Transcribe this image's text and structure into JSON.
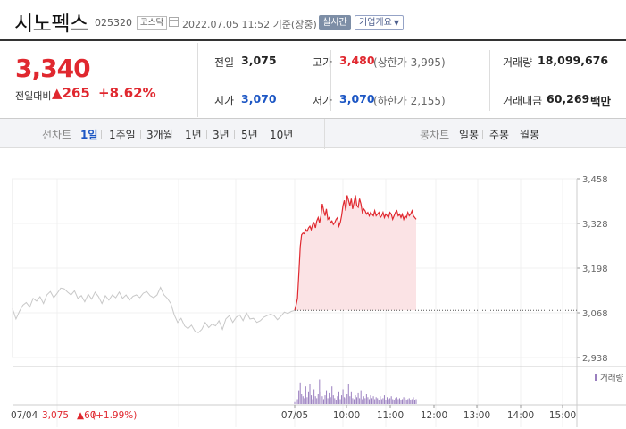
{
  "stock": {
    "name": "시노펙스",
    "code": "025320",
    "market": "코스닥",
    "datetime": "2022.07.05 11:52 기준(장중)",
    "realtime_label": "실시간",
    "corp_info_label": "기업개요"
  },
  "price": {
    "current": "3,340",
    "change_label": "전일대비",
    "change": "▲265",
    "rate": "+8.62%"
  },
  "stats": {
    "prev_label": "전일",
    "prev": "3,075",
    "high_label": "고가",
    "high": "3,480",
    "high_sub": "(상한가 3,995)",
    "volume_label": "거래량",
    "volume": "18,099,676",
    "open_label": "시가",
    "open": "3,070",
    "low_label": "저가",
    "low": "3,070",
    "low_sub": "(하한가 2,155)",
    "amount_label": "거래대금",
    "amount": "60,269",
    "amount_unit": "백만"
  },
  "tabs": {
    "line_label": "선차트",
    "line_items": [
      "1일",
      "1주일",
      "3개월",
      "1년",
      "3년",
      "5년",
      "10년"
    ],
    "active": "1일",
    "candle_label": "봉차트",
    "candle_items": [
      "일봉",
      "주봉",
      "월봉"
    ]
  },
  "chart_data": {
    "type": "line",
    "y_ticks": [
      "3,458",
      "3,328",
      "3,198",
      "3,068",
      "2,938"
    ],
    "ylim": [
      2938,
      3458
    ],
    "reference_price": 3075,
    "x_labels": [
      "07/05",
      "10:00",
      "11:00",
      "12:00",
      "13:00",
      "14:00",
      "15:00"
    ],
    "prev_day_label": "07/04",
    "prev_day_close": "3,075",
    "prev_day_change": "▲60",
    "prev_day_rate": "(+1.99%)",
    "volume_legend": "거래량",
    "prev_series": [
      3080,
      3050,
      3072,
      3090,
      3098,
      3085,
      3110,
      3102,
      3115,
      3095,
      3120,
      3130,
      3112,
      3125,
      3140,
      3138,
      3128,
      3120,
      3132,
      3110,
      3118,
      3100,
      3122,
      3108,
      3128,
      3115,
      3095,
      3118,
      3105,
      3120,
      3112,
      3128,
      3110,
      3120,
      3105,
      3116,
      3120,
      3112,
      3125,
      3130,
      3118,
      3112,
      3120,
      3142,
      3120,
      3110,
      3095,
      3062,
      3040,
      3052,
      3030,
      3022,
      3032,
      3015,
      3010,
      3020,
      3040,
      3025,
      3035,
      3030,
      3045,
      3020,
      3050,
      3060,
      3040,
      3055,
      3062,
      3045,
      3068,
      3050,
      3052,
      3040,
      3045,
      3055,
      3060,
      3064,
      3060,
      3048,
      3058,
      3070,
      3066,
      3072,
      3075
    ],
    "today_series": [
      3075,
      3090,
      3110,
      3180,
      3260,
      3295,
      3300,
      3298,
      3310,
      3305,
      3315,
      3320,
      3310,
      3325,
      3330,
      3315,
      3335,
      3345,
      3330,
      3350,
      3385,
      3365,
      3350,
      3370,
      3340,
      3345,
      3330,
      3335,
      3325,
      3330,
      3340,
      3345,
      3320,
      3330,
      3350,
      3380,
      3395,
      3365,
      3410,
      3395,
      3380,
      3400,
      3370,
      3390,
      3410,
      3380,
      3375,
      3400,
      3385,
      3360,
      3370,
      3365,
      3355,
      3360,
      3350,
      3360,
      3355,
      3350,
      3365,
      3350,
      3355,
      3360,
      3345,
      3350,
      3360,
      3345,
      3355,
      3350,
      3345,
      3360,
      3355,
      3340,
      3350,
      3360,
      3365,
      3350,
      3355,
      3345,
      3355,
      3340,
      3350,
      3345,
      3360,
      3350,
      3355,
      3365,
      3350,
      3345,
      3340
    ],
    "today_volume": [
      2,
      3,
      5,
      14,
      22,
      10,
      8,
      6,
      18,
      7,
      12,
      20,
      9,
      5,
      15,
      8,
      6,
      10,
      25,
      12,
      8,
      5,
      9,
      14,
      6,
      11,
      7,
      18,
      9,
      6,
      4,
      8,
      12,
      5,
      9,
      15,
      7,
      6,
      10,
      20,
      8,
      12,
      6,
      5,
      9,
      7,
      11,
      6,
      14,
      5,
      8,
      6,
      10,
      7,
      5,
      9,
      6,
      8,
      5,
      7,
      6,
      4,
      8,
      5,
      6,
      9,
      4,
      7,
      5,
      6,
      8,
      5,
      4,
      6,
      7,
      5,
      6,
      4,
      5,
      7,
      6,
      4,
      5,
      6,
      4,
      5,
      7,
      4,
      5
    ]
  }
}
